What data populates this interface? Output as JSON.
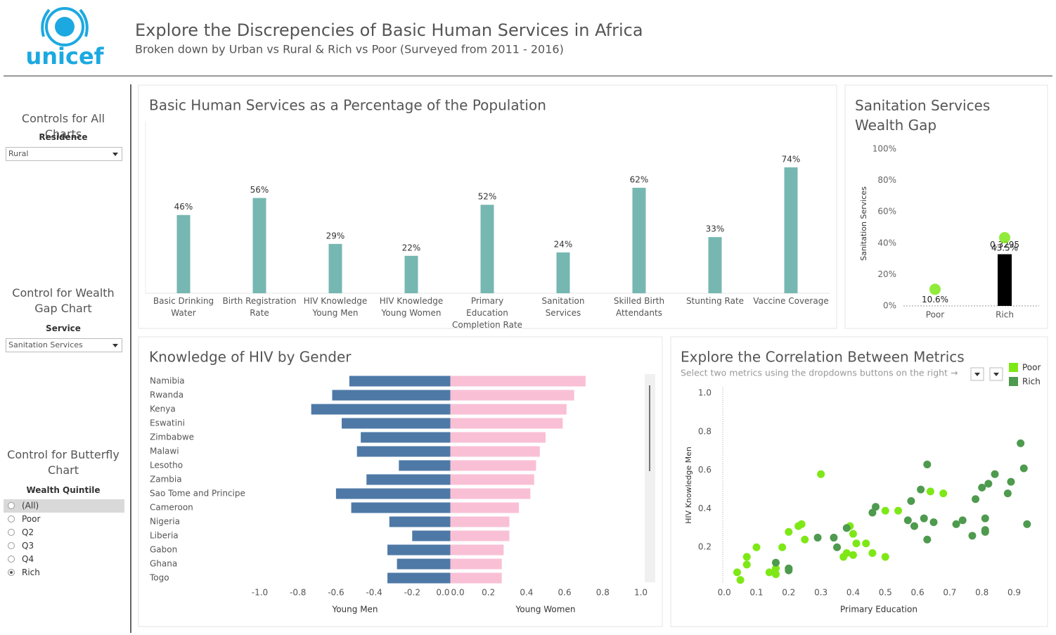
{
  "header": {
    "logo": "unicef",
    "title": "Explore the Discrepencies of Basic Human Services in Africa",
    "subtitle": "Broken down by Urban vs Rural & Rich vs Poor (Surveyed from 2011 - 2016)"
  },
  "controls": [
    {
      "title": "Controls for All Charts",
      "label": "Residence",
      "value": "Rural"
    },
    {
      "title": "Control for Wealth Gap Chart",
      "label": "Service",
      "value": "Sanitation Services"
    },
    {
      "title": "Control for Butterfly Chart",
      "label": "Wealth Quintile",
      "options": [
        "(All)",
        "Poor",
        "Q2",
        "Q3",
        "Q4",
        "Rich"
      ],
      "selected": "Rich"
    }
  ],
  "chart_data": [
    {
      "type": "bar",
      "title": "Basic Human Services as a Percentage of the Population",
      "categories": [
        "Basic Drinking Water",
        "Birth Registration Rate",
        "HIV Knowledge Young Men",
        "HIV Knowledge Young Women",
        "Primary Education Completion Rate",
        "Sanitation Services",
        "Skilled Birth Attendants",
        "Stunting Rate",
        "Vaccine Coverage"
      ],
      "values": [
        46,
        56,
        29,
        22,
        52,
        24,
        62,
        33,
        74
      ],
      "value_labels": [
        "46%",
        "56%",
        "29%",
        "22%",
        "52%",
        "24%",
        "62%",
        "33%",
        "74%"
      ],
      "color": "#76b7b2"
    },
    {
      "type": "combo",
      "title": "Sanitation Services Wealth Gap",
      "y_label": "Sanitation Services",
      "categories": [
        "Poor",
        "Rich"
      ],
      "series": [
        {
          "mark": "bar",
          "color": "#000000",
          "values": [
            null,
            32.95
          ],
          "value_labels": [
            null,
            "0.3295"
          ]
        },
        {
          "mark": "point",
          "color": "#7ee817",
          "values": [
            10.6,
            43.5
          ],
          "value_labels": [
            "10.6%",
            "43.5%"
          ]
        }
      ],
      "ylim": [
        0,
        100
      ],
      "yticks": [
        {
          "value": 0,
          "label": "0%"
        },
        {
          "value": 20,
          "label": "20%"
        },
        {
          "value": 40,
          "label": "40%"
        },
        {
          "value": 60,
          "label": "60%"
        },
        {
          "value": 80,
          "label": "80%"
        },
        {
          "value": 100,
          "label": "100%"
        }
      ]
    },
    {
      "type": "butterfly",
      "title": "Knowledge of HIV by Gender",
      "categories": [
        "Namibia",
        "Rwanda",
        "Kenya",
        "Eswatini",
        "Zimbabwe",
        "Malawi",
        "Lesotho",
        "Zambia",
        "Sao Tome and Principe",
        "Cameroon",
        "Nigeria",
        "Liberia",
        "Gabon",
        "Ghana",
        "Togo"
      ],
      "series": [
        {
          "name": "Young Men",
          "color": "#4e79a7",
          "values": [
            -0.53,
            -0.62,
            -0.73,
            -0.57,
            -0.47,
            -0.49,
            -0.27,
            -0.44,
            -0.6,
            -0.52,
            -0.32,
            -0.2,
            -0.33,
            -0.28,
            -0.33
          ],
          "xlim": [
            -1,
            0
          ],
          "xticks": [
            {
              "value": -1,
              "label": "-1.0"
            },
            -0.8,
            -0.6,
            -0.4,
            -0.2,
            {
              "value": 0,
              "label": "0.0"
            }
          ]
        },
        {
          "name": "Young Women",
          "color": "#f9c0d5",
          "values": [
            0.71,
            0.65,
            0.61,
            0.59,
            0.5,
            0.47,
            0.45,
            0.44,
            0.42,
            0.36,
            0.31,
            0.31,
            0.28,
            0.27,
            0.27
          ],
          "xlim": [
            0,
            1
          ],
          "xticks": [
            {
              "value": 0,
              "label": "0.0"
            },
            0.2,
            0.4,
            0.6,
            0.8,
            {
              "value": 1,
              "label": "1.0"
            }
          ]
        }
      ]
    },
    {
      "type": "scatter",
      "title": "Explore the Correlation Between Metrics",
      "subtitle": "Select two metrics using the dropdowns buttons on the right →",
      "x_label": "Primary Education",
      "y_label": "HIV Knowledge Men",
      "xlim": [
        -0.02,
        0.96
      ],
      "ylim": [
        0,
        1.03
      ],
      "xticks": [
        {
          "value": 0,
          "label": "0.0"
        },
        0.1,
        0.2,
        0.3,
        0.4,
        0.5,
        0.6,
        0.7,
        0.8,
        0.9
      ],
      "yticks": [
        0.2,
        0.4,
        0.6,
        0.8,
        {
          "value": 1,
          "label": "1.0"
        }
      ],
      "legend": "top-right",
      "series": [
        {
          "name": "Poor",
          "color": "#7ee817",
          "x": [
            0.3,
            0.04,
            0.05,
            0.07,
            0.07,
            0.1,
            0.14,
            0.16,
            0.16,
            0.18,
            0.2,
            0.23,
            0.24,
            0.25,
            0.2,
            0.37,
            0.38,
            0.39,
            0.4,
            0.4,
            0.41,
            0.44,
            0.46,
            0.5,
            0.5,
            0.54,
            0.64,
            0.68
          ],
          "values": [
            0.58,
            0.07,
            0.03,
            0.15,
            0.11,
            0.2,
            0.07,
            0.09,
            0.06,
            0.2,
            0.28,
            0.31,
            0.32,
            0.24,
            0.09,
            0.15,
            0.17,
            0.31,
            0.16,
            0.27,
            0.22,
            0.22,
            0.17,
            0.39,
            0.15,
            0.39,
            0.49,
            0.48
          ]
        },
        {
          "name": "Rich",
          "color": "#4e9a4e",
          "x": [
            0.16,
            0.2,
            0.2,
            0.29,
            0.34,
            0.35,
            0.38,
            0.46,
            0.47,
            0.57,
            0.58,
            0.59,
            0.61,
            0.62,
            0.63,
            0.63,
            0.65,
            0.72,
            0.74,
            0.77,
            0.78,
            0.8,
            0.81,
            0.81,
            0.81,
            0.82,
            0.84,
            0.88,
            0.89,
            0.92,
            0.93,
            0.94
          ],
          "values": [
            0.12,
            0.09,
            0.08,
            0.25,
            0.25,
            0.2,
            0.3,
            0.38,
            0.41,
            0.34,
            0.44,
            0.31,
            0.5,
            0.35,
            0.63,
            0.24,
            0.33,
            0.32,
            0.34,
            0.26,
            0.45,
            0.51,
            0.29,
            0.35,
            0.28,
            0.53,
            0.58,
            0.48,
            0.54,
            0.74,
            0.61,
            0.32
          ]
        }
      ]
    }
  ]
}
